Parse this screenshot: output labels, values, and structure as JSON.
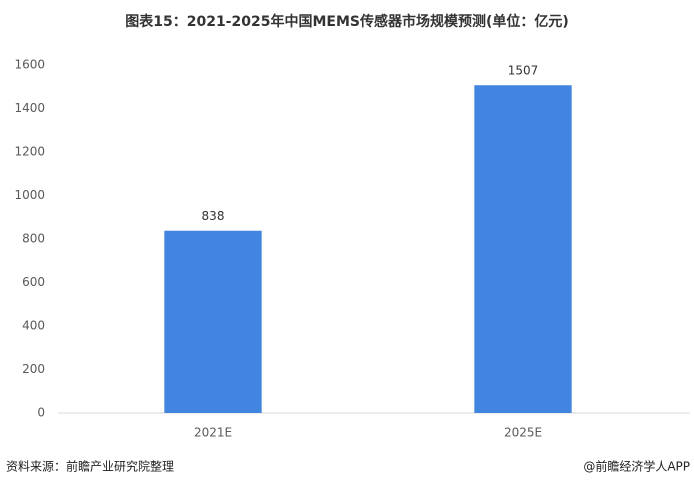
{
  "chart_data": {
    "type": "bar",
    "title": "图表15：2021-2025年中国MEMS传感器市场规模预测(单位：亿元)",
    "categories": [
      "2021E",
      "2025E"
    ],
    "values": [
      838,
      1507
    ],
    "color": "#4285e0",
    "ylim": [
      0,
      1600
    ],
    "yticks": [
      0,
      200,
      400,
      600,
      800,
      1000,
      1200,
      1400,
      1600
    ],
    "grid": false,
    "source": "资料来源：前瞻产业研究院整理",
    "credit": "@前瞻经济学人APP"
  }
}
